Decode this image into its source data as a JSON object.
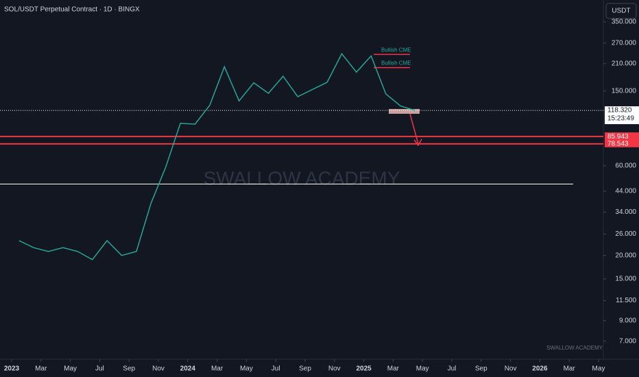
{
  "chart_data": {
    "type": "line",
    "title": "SOL/USDT Perpetual Contract · 1D · BINGX",
    "currency_button": "USDT",
    "watermark": "SWALLOW ACADEMY",
    "corner_mark": "SWALLOW ACADEMY",
    "log_scale": true,
    "grid": false,
    "x": [
      "2023-01",
      "2023-02",
      "2023-03",
      "2023-04",
      "2023-05",
      "2023-06",
      "2023-07",
      "2023-08",
      "2023-09",
      "2023-10",
      "2023-11",
      "2023-12",
      "2024-01",
      "2024-02",
      "2024-03",
      "2024-04",
      "2024-05",
      "2024-06",
      "2024-07",
      "2024-08",
      "2024-09",
      "2024-10",
      "2024-11",
      "2024-12",
      "2025-01",
      "2025-02",
      "2025-03",
      "2025-04"
    ],
    "series": [
      {
        "name": "SOL/USDT",
        "color": "#26a69a",
        "values": [
          24,
          22,
          21,
          22,
          21,
          19,
          24,
          20,
          21,
          38,
          59,
          101,
          100,
          126,
          202,
          133,
          166,
          146,
          180,
          140,
          153,
          167,
          237,
          189,
          231,
          145,
          125,
          118.32
        ]
      }
    ],
    "xticks": [
      {
        "value": "2023-01",
        "label": "2023"
      },
      {
        "value": "2023-03",
        "label": "Mar"
      },
      {
        "value": "2023-05",
        "label": "May"
      },
      {
        "value": "2023-07",
        "label": "Jul"
      },
      {
        "value": "2023-09",
        "label": "Sep"
      },
      {
        "value": "2023-11",
        "label": "Nov"
      },
      {
        "value": "2024-01",
        "label": "2024"
      },
      {
        "value": "2024-03",
        "label": "Mar"
      },
      {
        "value": "2024-05",
        "label": "May"
      },
      {
        "value": "2024-07",
        "label": "Jul"
      },
      {
        "value": "2024-09",
        "label": "Sep"
      },
      {
        "value": "2024-11",
        "label": "Nov"
      },
      {
        "value": "2025-01",
        "label": "2025"
      },
      {
        "value": "2025-03",
        "label": "Mar"
      },
      {
        "value": "2025-05",
        "label": "May"
      },
      {
        "value": "2025-07",
        "label": "Jul"
      },
      {
        "value": "2025-09",
        "label": "Sep"
      },
      {
        "value": "2025-11",
        "label": "Nov"
      },
      {
        "value": "2026-01",
        "label": "2026"
      },
      {
        "value": "2026-03",
        "label": "Mar"
      },
      {
        "value": "2026-05",
        "label": "May"
      }
    ],
    "ylim": [
      5.8,
      458
    ],
    "yticks": [
      {
        "value": 7,
        "label": "7.000"
      },
      {
        "value": 9,
        "label": "9.000"
      },
      {
        "value": 11.5,
        "label": "11.500"
      },
      {
        "value": 15,
        "label": "15.000"
      },
      {
        "value": 20,
        "label": "20.000"
      },
      {
        "value": 26,
        "label": "26.000"
      },
      {
        "value": 34,
        "label": "34.000"
      },
      {
        "value": 44,
        "label": "44.000"
      },
      {
        "value": 60,
        "label": "60.000"
      },
      {
        "value": 150,
        "label": "150.000"
      },
      {
        "value": 210,
        "label": "210.000"
      },
      {
        "value": 270,
        "label": "270.000"
      },
      {
        "value": 350,
        "label": "350.000"
      }
    ],
    "price_tags": [
      {
        "value": 118.32,
        "label": "118.320",
        "sub": "15:23:49",
        "color": "#ffffff",
        "text_color": "#131722",
        "line": "dotted"
      },
      {
        "value": 85.943,
        "label": "85.943",
        "color": "#f23645",
        "text_color": "#ffffff",
        "line": "solid"
      },
      {
        "value": 78.543,
        "label": "78.543",
        "color": "#f23645",
        "text_color": "#ffffff",
        "line": "solid"
      }
    ],
    "levels": [
      {
        "value": 48,
        "color": "#ffffff"
      }
    ],
    "annotations": [
      {
        "text": "Bullish CME",
        "value": 235
      },
      {
        "text": "Bullish CME",
        "value": 200
      }
    ]
  }
}
